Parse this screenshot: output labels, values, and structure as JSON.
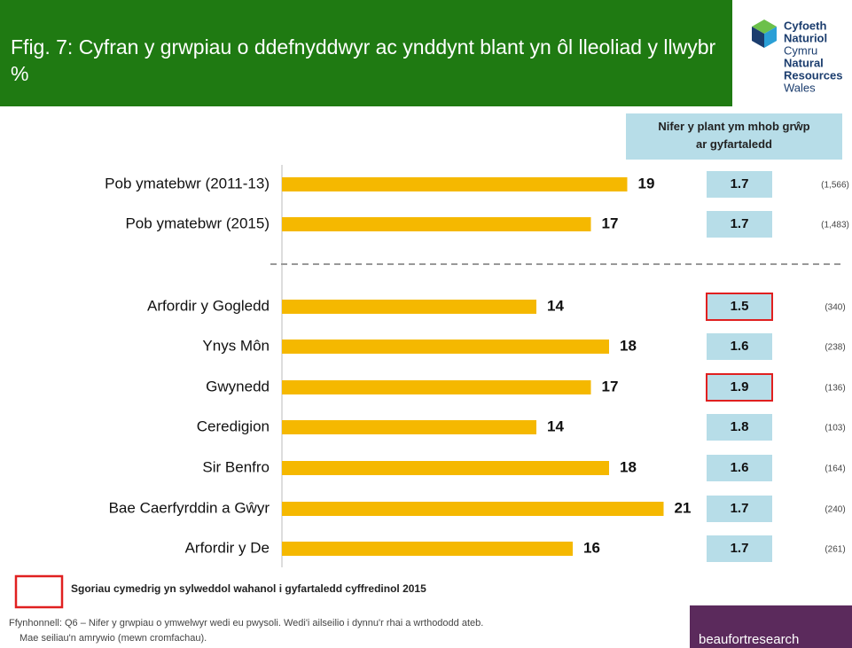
{
  "header": {
    "title": "Ffig. 7: Cyfran y grwpiau o ddefnyddwyr ac ynddynt blant yn ôl lleoliad y llwybr %",
    "logo": [
      "Cyfoeth",
      "Naturiol",
      "Cymru",
      "Natural",
      "Resources",
      "Wales"
    ]
  },
  "chart_data": {
    "type": "hbar",
    "categories": [
      "Pob ymatebwr (2011-13)",
      "Pob ymatebwr (2015)",
      "Arfordir y Gogledd",
      "Ynys Môn",
      "Gwynedd",
      "Ceredigion",
      "Sir Benfro",
      "Bae Caerfyrddin a Gŵyr",
      "Arfordir y De"
    ],
    "values": [
      19,
      17,
      14,
      18,
      17,
      14,
      18,
      21,
      16
    ],
    "color": "#f5b800",
    "side_header": "Nifer y plant ym mhob grŵp ar gyfartaledd",
    "side_values": [
      1.7,
      1.7,
      1.5,
      1.6,
      1.9,
      1.8,
      1.6,
      1.7,
      1.7
    ],
    "highlighted": [
      false,
      false,
      true,
      false,
      true,
      false,
      false,
      false,
      false
    ],
    "highlight_color": "#e02020",
    "sample_sizes": [
      "(1,566)",
      "(1,483)",
      "(340)",
      "(238)",
      "(136)",
      "(103)",
      "(164)",
      "(240)",
      "(261)"
    ]
  },
  "legend": {
    "label": "Sgoriau cymedrig yn sylweddol wahanol i gyfartaledd cyffredinol 2015"
  },
  "source": [
    "Ffynhonnell: Q6 – Nifer y grwpiau o ymwelwyr wedi eu pwysoli. Wedi'i ailseilio i dynnu'r rhai a wrthododd ateb.",
    "Mae seiliau'n amrywio (mewn cromfachau)."
  ],
  "footer": {
    "brand": "beaufortresearch"
  }
}
